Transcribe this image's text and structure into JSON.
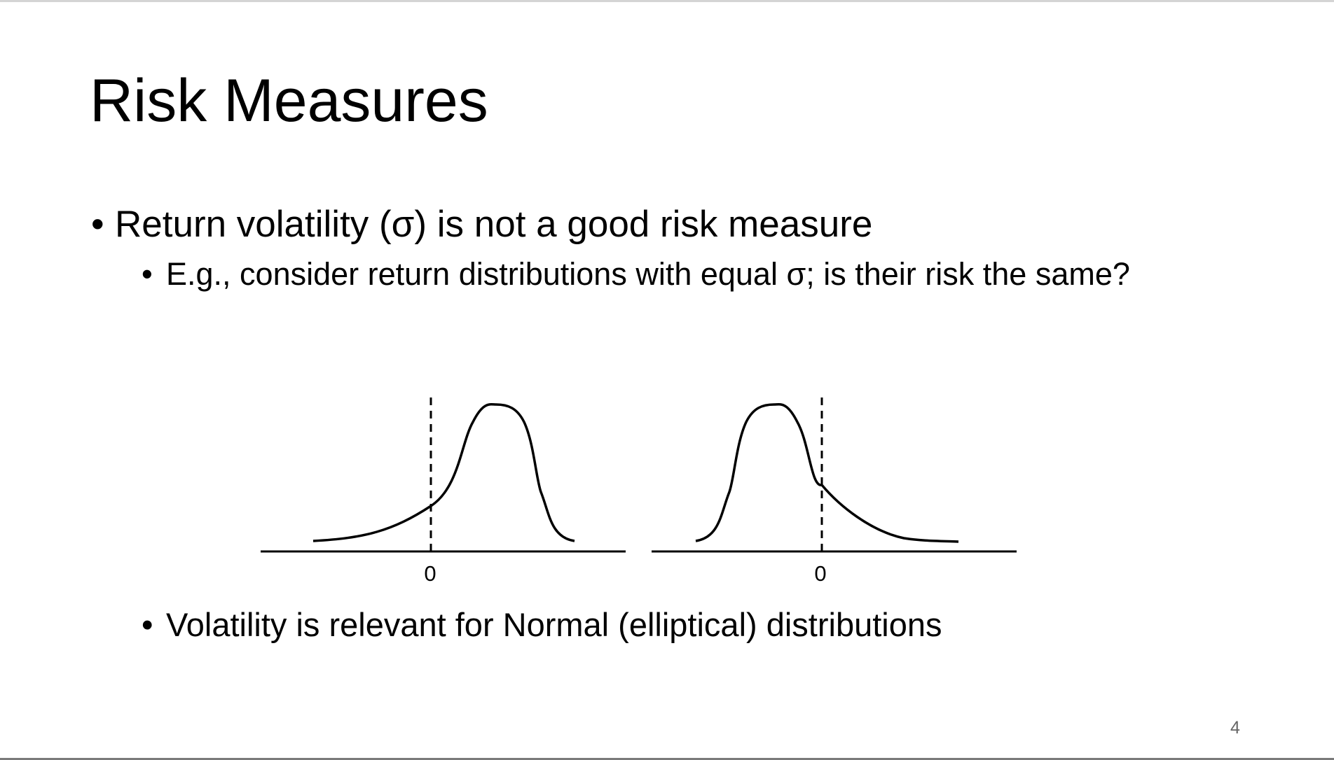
{
  "slide": {
    "title": "Risk Measures",
    "bullets": [
      {
        "level": 1,
        "text": "Return volatility (σ) is not a good risk measure"
      },
      {
        "level": 2,
        "text": "E.g., consider return distributions with equal σ;  is their risk the same?"
      },
      {
        "level": 2,
        "text": "Volatility is relevant for Normal (elliptical) distributions"
      }
    ],
    "bullet_symbol": "•",
    "page_number": "4"
  },
  "figure": {
    "left_plot": {
      "axis_label": "0",
      "skew": "left"
    },
    "right_plot": {
      "axis_label": "0",
      "skew": "right"
    }
  }
}
